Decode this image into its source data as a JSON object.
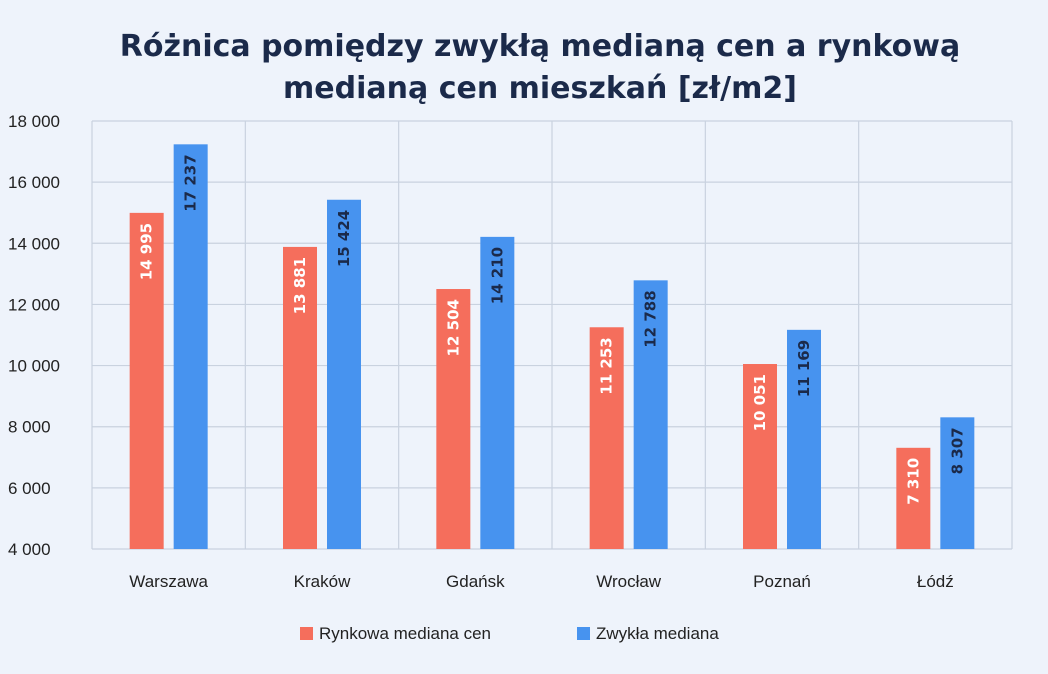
{
  "chart_data": {
    "type": "bar",
    "title": "Różnica pomiędzy zwykłą medianą cen a rynkową medianą cen mieszkań [zł/m2]",
    "title_lines": [
      "Różnica pomiędzy zwykłą medianą cen a rynkową",
      "medianą cen mieszkań [zł/m2]"
    ],
    "categories": [
      "Warszawa",
      "Kraków",
      "Gdańsk",
      "Wrocław",
      "Poznań",
      "Łódź"
    ],
    "series": [
      {
        "name": "Rynkowa mediana cen",
        "color": "#f56e5c",
        "label_color": "#ffffff",
        "values": [
          14995,
          13881,
          12504,
          11253,
          10051,
          7310
        ],
        "labels": [
          "14 995",
          "13 881",
          "12 504",
          "11 253",
          "10 051",
          "7 310"
        ]
      },
      {
        "name": "Zwykła mediana",
        "color": "#4793ef",
        "label_color": "#1b2a4a",
        "values": [
          17237,
          15424,
          14210,
          12788,
          11169,
          8307
        ],
        "labels": [
          "17 237",
          "15 424",
          "14 210",
          "12 788",
          "11 169",
          "8 307"
        ]
      }
    ],
    "ylim": [
      4000,
      18000
    ],
    "yticks": [
      4000,
      6000,
      8000,
      10000,
      12000,
      14000,
      16000,
      18000
    ],
    "ytick_labels": [
      "4 000",
      "6 000",
      "8 000",
      "10 000",
      "12 000",
      "14 000",
      "16 000",
      "18 000"
    ],
    "xlabel": "",
    "ylabel": "",
    "grid": true,
    "legend_position": "bottom-center"
  }
}
